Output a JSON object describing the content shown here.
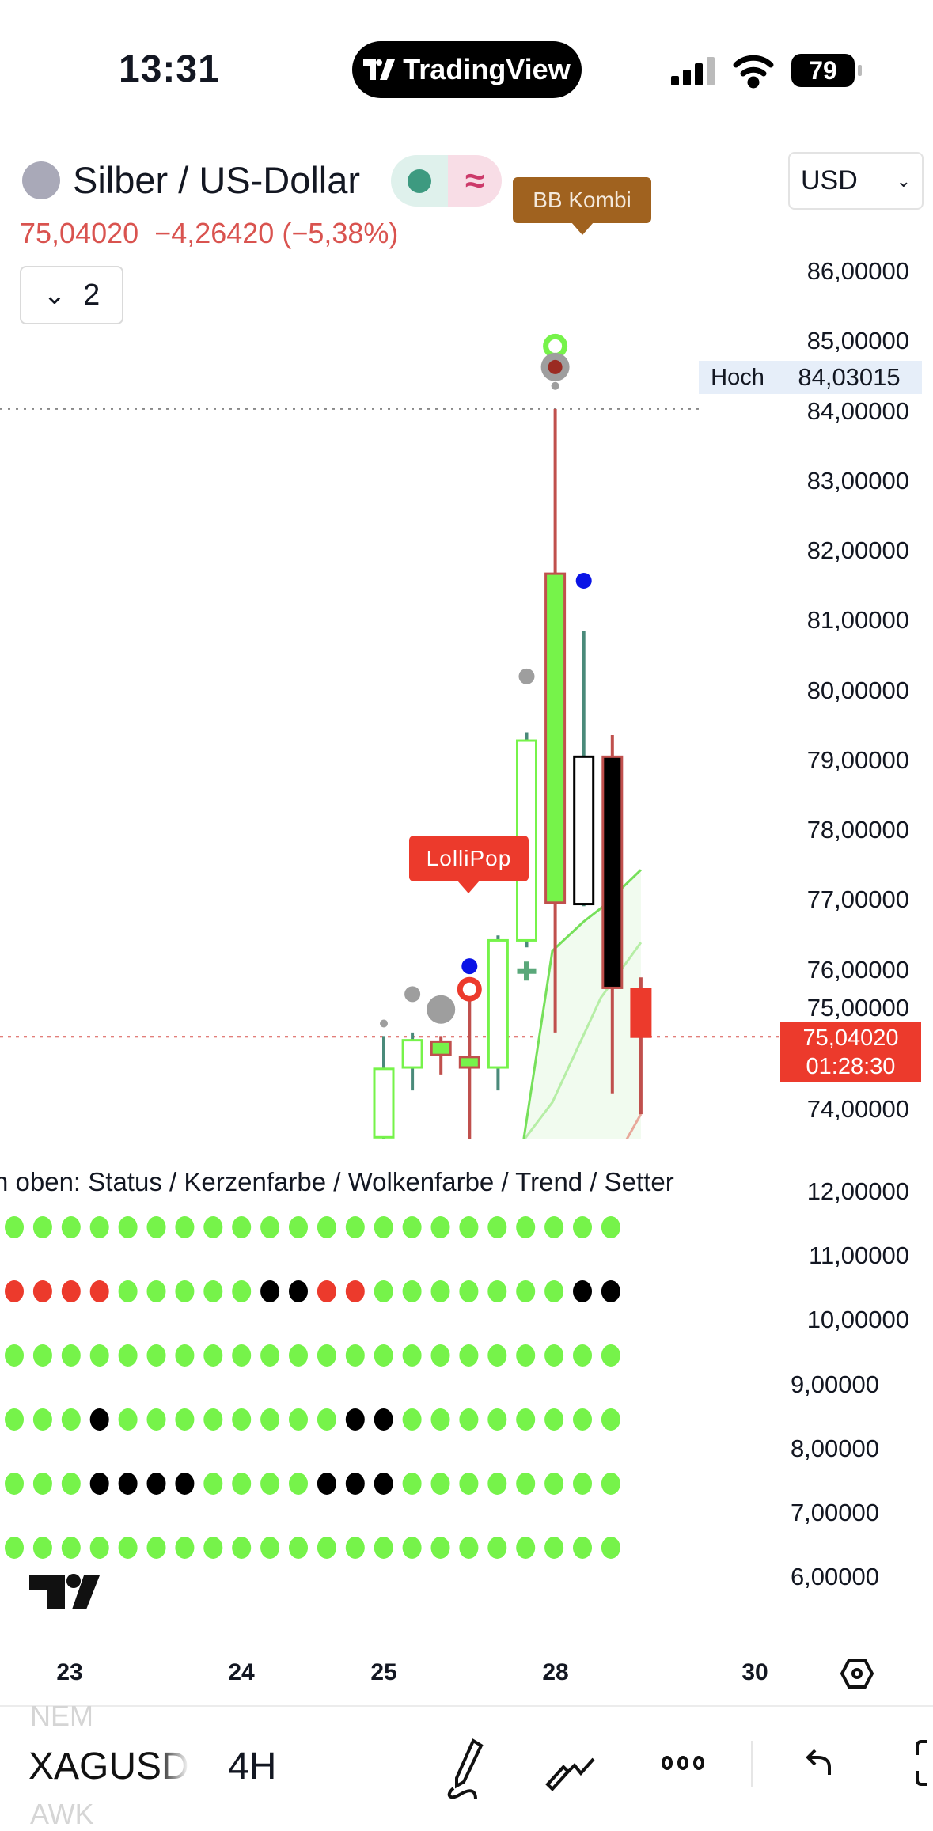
{
  "status_bar": {
    "time": "13:31",
    "app_pill": "TradingView",
    "battery": "79"
  },
  "header": {
    "title": "Silber / US-Dollar",
    "last_price": "75,04020",
    "change": "−4,26420 (−5,38%)",
    "collapse_count": "2",
    "currency": "USD",
    "indicator_label": "BB Kombi",
    "status_dot_color": "#3d9a80"
  },
  "price_axis": {
    "labels": [
      "86,00000",
      "85,00000",
      "84,00000",
      "83,00000",
      "82,00000",
      "81,00000",
      "80,00000",
      "79,00000",
      "78,00000",
      "77,00000",
      "76,00000",
      "75,00000",
      "74,00000"
    ],
    "high_label": "Hoch",
    "high_value": "84,03015",
    "last_value": "75,04020",
    "countdown": "01:28:30"
  },
  "chart_data": {
    "type": "candlestick",
    "ylim": [
      73.5,
      86
    ],
    "high_line": 84.03015,
    "last_line": 75.0402,
    "candles": [
      {
        "o": 73.6,
        "h": 75.05,
        "l": 73.5,
        "c": 74.58,
        "fill": "none",
        "border": "#76f34a",
        "wick": "#4a8a7a"
      },
      {
        "o": 74.6,
        "h": 75.1,
        "l": 74.27,
        "c": 74.99,
        "fill": "none",
        "border": "#76f34a",
        "wick": "#4a8a7a"
      },
      {
        "o": 74.78,
        "h": 75.05,
        "l": 74.5,
        "c": 74.97,
        "fill": "#76f34a",
        "border": "#c0504d",
        "wick": "#c0504d"
      },
      {
        "o": 74.6,
        "h": 75.6,
        "l": 73.5,
        "c": 74.75,
        "fill": "#76f34a",
        "border": "#c0504d",
        "wick": "#c0504d"
      },
      {
        "o": 74.6,
        "h": 76.49,
        "l": 74.27,
        "c": 76.42,
        "fill": "none",
        "border": "#76f34a",
        "wick": "#4a8a7a"
      },
      {
        "o": 76.42,
        "h": 79.4,
        "l": 76.32,
        "c": 79.28,
        "fill": "none",
        "border": "#76f34a",
        "wick": "#4a8a7a"
      },
      {
        "o": 76.96,
        "h": 84.03,
        "l": 75.1,
        "c": 81.67,
        "fill": "#76f34a",
        "border": "#c0504d",
        "wick": "#c0504d"
      },
      {
        "o": 76.94,
        "h": 80.85,
        "l": 76.91,
        "c": 79.05,
        "fill": "#ffffff",
        "border": "#000000",
        "wick": "#4a8a7a"
      },
      {
        "o": 79.05,
        "h": 79.36,
        "l": 74.23,
        "c": 75.74,
        "fill": "#000000",
        "border": "#c0504d",
        "wick": "#c0504d"
      },
      {
        "o": 75.72,
        "h": 75.89,
        "l": 73.93,
        "c": 75.04,
        "fill": "#ec3a2c",
        "border": "#ec3a2c",
        "wick": "#c0504d"
      }
    ],
    "markers": [
      {
        "candle": 6,
        "price": 84.93,
        "kind": "ring",
        "color": "#76f34a"
      },
      {
        "candle": 6,
        "price": 84.63,
        "kind": "gray-dot-red-core",
        "color": "#9e9e9e"
      },
      {
        "candle": 6,
        "price": 84.36,
        "kind": "dot-small",
        "color": "#9e9e9e"
      },
      {
        "candle": 7,
        "price": 81.57,
        "kind": "dot",
        "color": "#0a14e6"
      },
      {
        "candle": 5,
        "price": 80.2,
        "kind": "dot",
        "color": "#9e9e9e"
      },
      {
        "candle": 3,
        "price": 76.05,
        "kind": "dot",
        "color": "#0a14e6"
      },
      {
        "candle": 3,
        "price": 75.72,
        "kind": "ring",
        "color": "#ec3a2c"
      },
      {
        "candle": 5,
        "price": 75.98,
        "kind": "plus",
        "color": "#5aa87a"
      },
      {
        "candle": 0,
        "price": 75.23,
        "kind": "dot-small",
        "color": "#9e9e9e"
      },
      {
        "candle": 1,
        "price": 75.65,
        "kind": "dot",
        "color": "#9e9e9e"
      },
      {
        "candle": 2,
        "price": 75.43,
        "kind": "dot-large",
        "color": "#9e9e9e"
      }
    ],
    "signal_label": {
      "text": "LolliPop",
      "candle": 3
    },
    "cloud": {
      "upper": [
        [
          4.9,
          73.58
        ],
        [
          5.9,
          76.27
        ],
        [
          7,
          76.69
        ],
        [
          7.6,
          76.88
        ],
        [
          9,
          77.43
        ]
      ],
      "lower": [
        [
          4.9,
          73.56
        ],
        [
          5.9,
          74.1
        ],
        [
          7.6,
          75.6
        ],
        [
          9,
          76.39
        ]
      ],
      "upper_color": "#76e05a",
      "lower_color": "#b6eea6",
      "fill": "#f1fbef"
    },
    "indicator_pane": {
      "legend": "n oben: Status / Kerzenfarbe / Wolkenfarbe / Trend / Setter",
      "axis_labels": [
        "12,00000",
        "11,00000",
        "10,00000",
        "9,00000",
        "8,00000",
        "7,00000",
        "6,00000"
      ],
      "colors": {
        "G": "#76f34a",
        "R": "#ec3a2c",
        "K": "#000000"
      },
      "rows": [
        "GGGGGGGGGGGGGGGGGGGGGG",
        "RRRRGGGGGKKRRGGGGGGGKK",
        "GGGGGGGGGGGGGGGGGGGGGG",
        "GGGKGGGGGGGGKKGGGGGGGG",
        "GGGKKKKGGGGKKKGGGGGGGG",
        "GGGGGGGGGGGGGGGGGGGGGG"
      ]
    },
    "time_axis": [
      "23",
      "24",
      "25",
      "28",
      "30"
    ]
  },
  "bottom_bar": {
    "prev_symbol": "NEM",
    "symbol": "XAGUSD",
    "timeframe": "4H",
    "next_symbol": "AWK"
  }
}
